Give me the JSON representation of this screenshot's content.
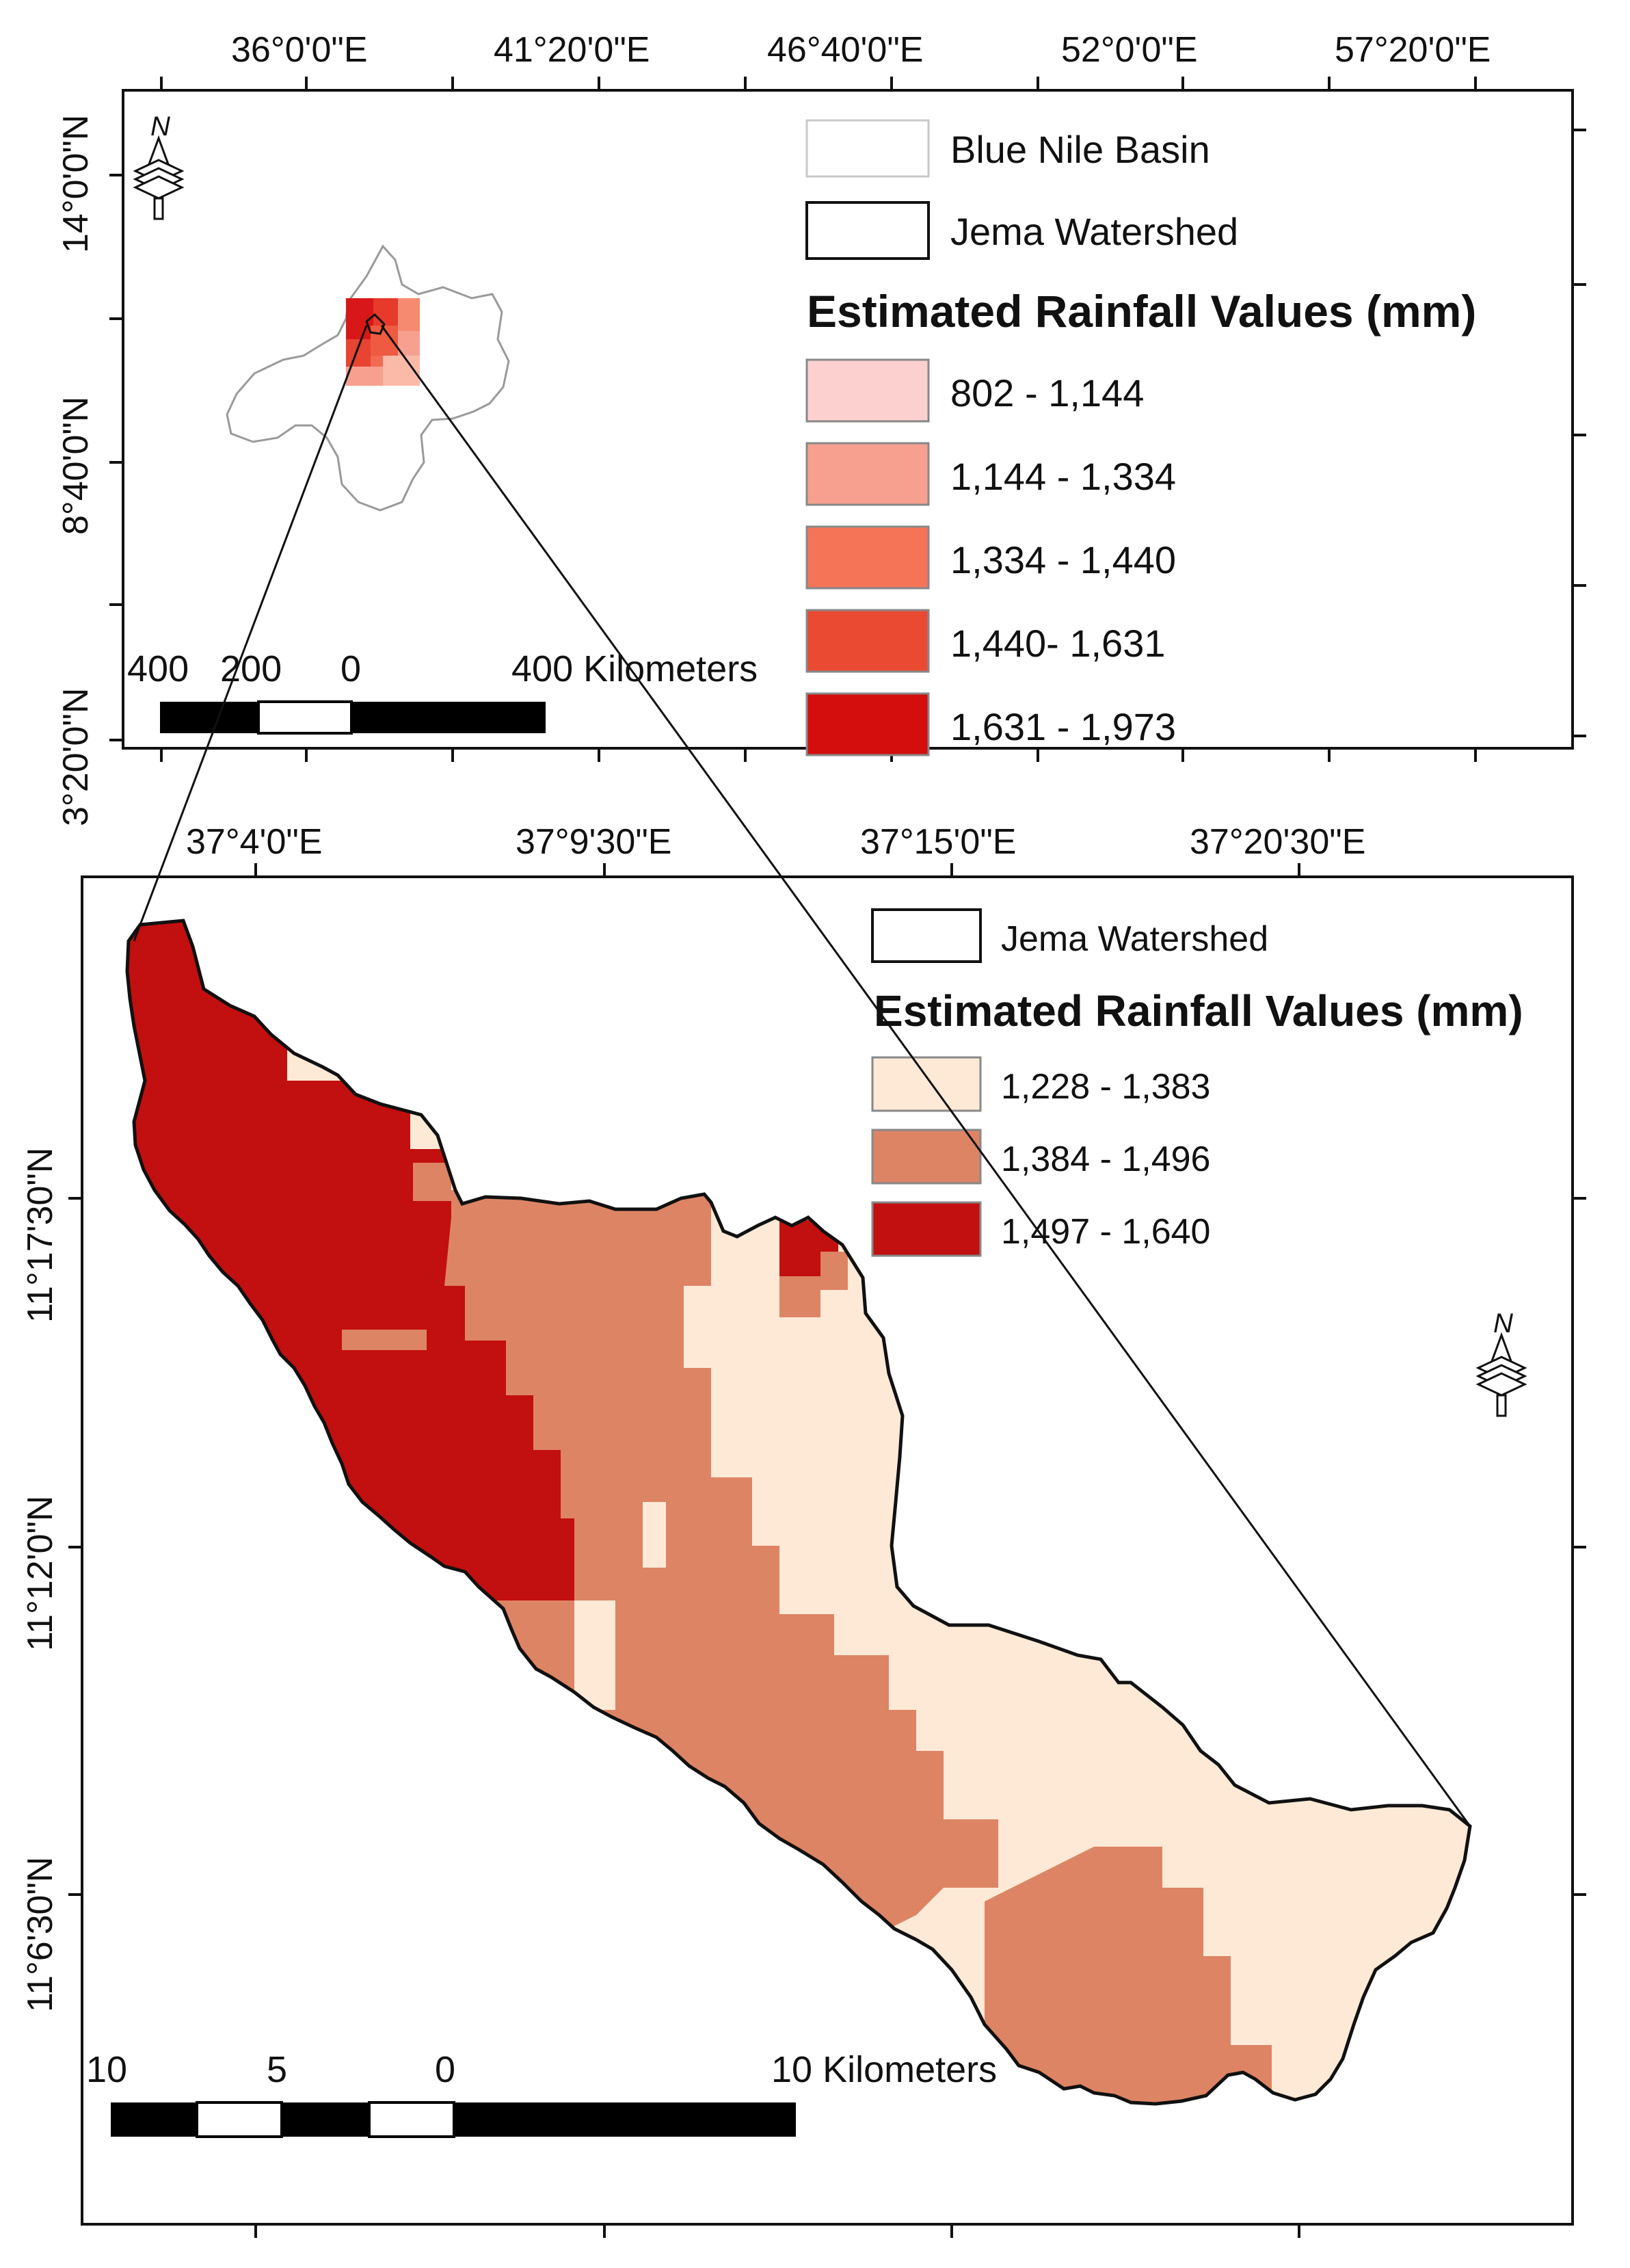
{
  "top_map": {
    "lon_labels": [
      "36°0'0\"E",
      "41°20'0\"E",
      "46°40'0\"E",
      "52°0'0\"E",
      "57°20'0\"E"
    ],
    "lat_labels": [
      "14°0'0\"N",
      "8°40'0\"N",
      "3°20'0\"N"
    ],
    "north_label": "N",
    "legend": {
      "basin_label": "Blue Nile Basin",
      "watershed_label": "Jema Watershed",
      "title": "Estimated Rainfall Values (mm)",
      "classes": [
        {
          "label": "802 - 1,144",
          "color": "#fdd0d0"
        },
        {
          "label": "1,144 - 1,334",
          "color": "#f7a090"
        },
        {
          "label": "1,334 - 1,440",
          "color": "#f57458"
        },
        {
          "label": "1,440- 1,631",
          "color": "#ea4a32"
        },
        {
          "label": "1,631 - 1,973",
          "color": "#d40d0d"
        }
      ]
    },
    "scale_labels": [
      "400",
      "200",
      "0",
      "400 Kilometers"
    ]
  },
  "bottom_map": {
    "lon_labels": [
      "37°4'0\"E",
      "37°9'30\"E",
      "37°15'0\"E",
      "37°20'30\"E"
    ],
    "lat_labels": [
      "11°17'30\"N",
      "11°12'0\"N",
      "11°6'30\"N"
    ],
    "north_label": "N",
    "legend": {
      "watershed_label": "Jema Watershed",
      "title": "Estimated Rainfall Values (mm)",
      "classes": [
        {
          "label": "1,228 - 1,383",
          "color": "#fde9d6"
        },
        {
          "label": "1,384 - 1,496",
          "color": "#dd8465"
        },
        {
          "label": "1,497 - 1,640",
          "color": "#c20f0f"
        }
      ]
    },
    "scale_labels": [
      "10",
      "5",
      "0",
      "10 Kilometers"
    ]
  }
}
